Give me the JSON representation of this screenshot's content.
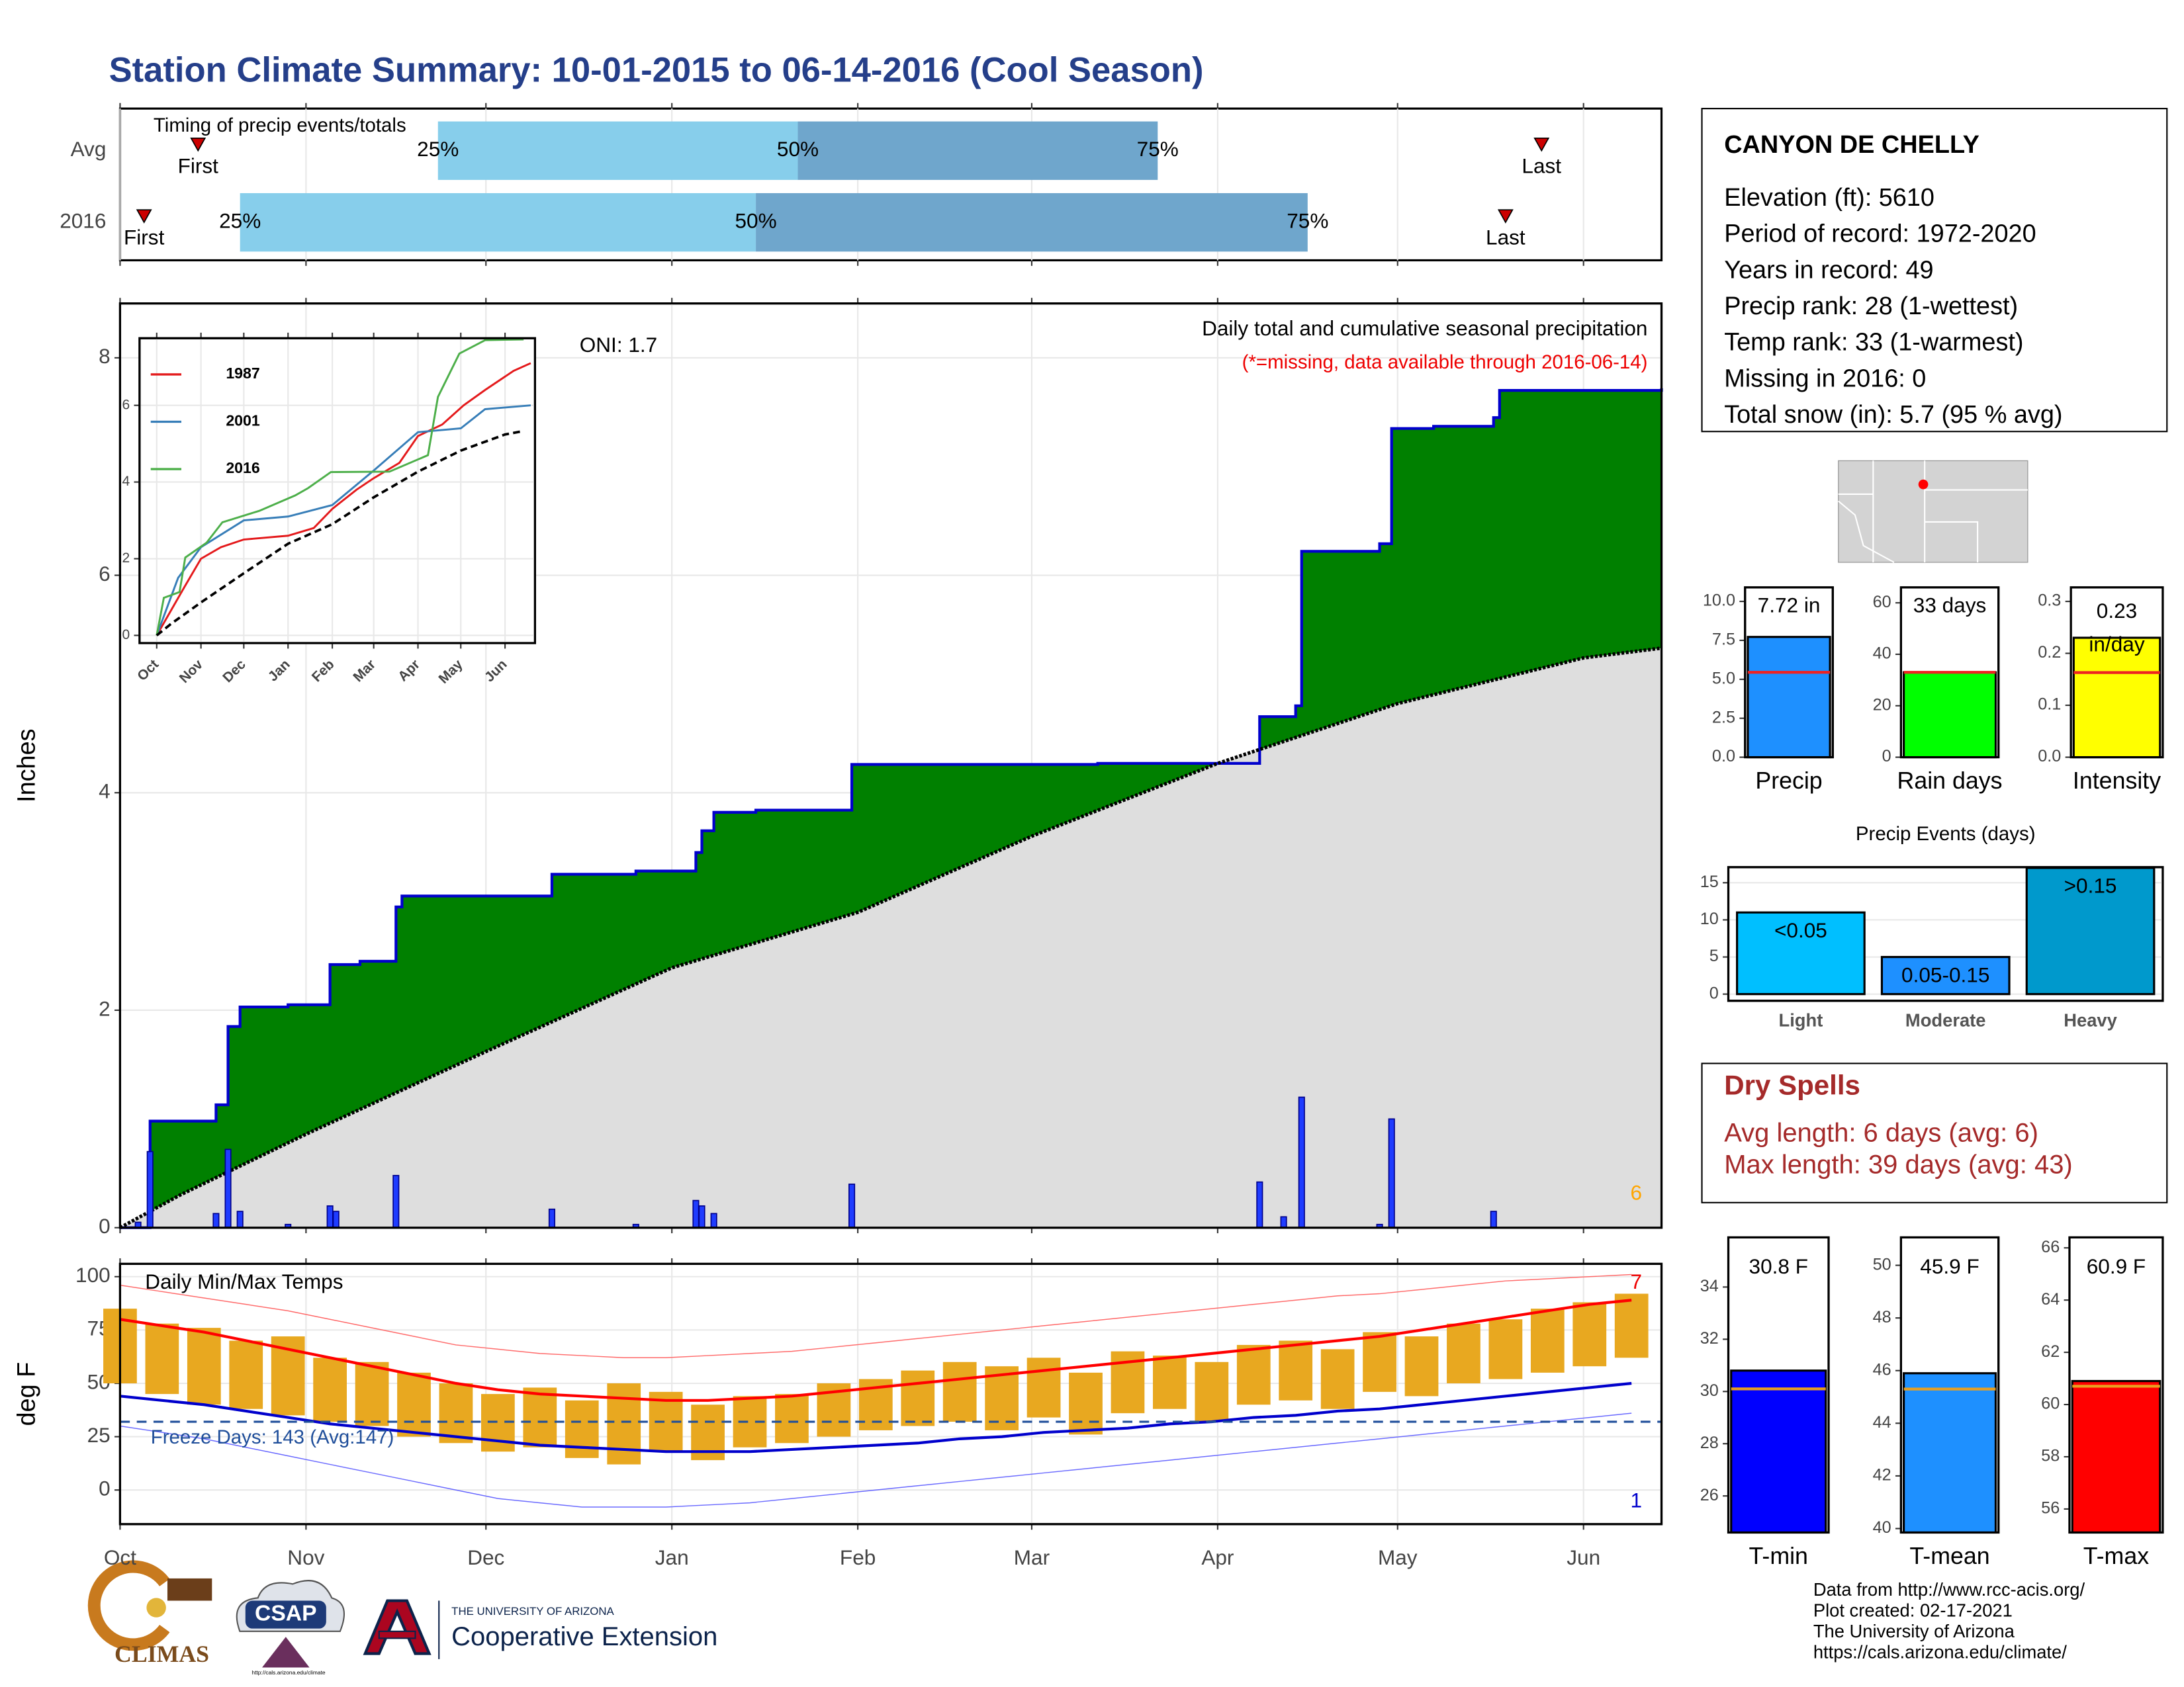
{
  "title": "Station Climate Summary: 10-01-2015 to 06-14-2016 (Cool Season)",
  "station": {
    "name": "CANYON DE CHELLY",
    "lines": [
      "Elevation (ft): 5610",
      "Period of record: 1972-2020",
      "Years in record: 49",
      "Precip rank: 28 (1-wettest)",
      "Temp rank: 33 (1-warmest)",
      "Missing in 2016: 0",
      "Total snow (in): 5.7 (95 % avg)"
    ]
  },
  "dry_spells": {
    "title": "Dry Spells",
    "lines": [
      "Avg length: 6 days (avg: 6)",
      "Max length: 39 days (avg: 43)"
    ]
  },
  "footer": {
    "lines": [
      "Data from http://www.rcc-acis.org/",
      "Plot created: 02-17-2021",
      "The University of Arizona",
      "https://cals.arizona.edu/climate/"
    ]
  },
  "logos": {
    "climas": "CLIMAS",
    "csap": "CSAP",
    "csap_url": "http://cals.arizona.edu/climate",
    "university": "THE UNIVERSITY OF ARIZONA",
    "extension": "Cooperative Extension"
  },
  "chart_data": [
    {
      "type": "timing",
      "subtitle": "Timing of precip events/totals",
      "categories": [
        "Avg",
        "2016"
      ],
      "marker_labels": [
        "First",
        "25%",
        "50%",
        "75%",
        "Last"
      ],
      "values": [
        [
          13,
          53,
          113,
          173,
          237
        ],
        [
          4,
          20,
          106,
          198,
          231
        ]
      ],
      "xlim": [
        0,
        257
      ],
      "xticks": [
        0,
        31,
        61,
        92,
        123,
        152,
        183,
        213,
        244
      ],
      "colors": [
        "#87ceeb",
        "#6fa6cc"
      ],
      "marker_color": "#cc0000"
    },
    {
      "type": "precip",
      "title": "Daily total and cumulative seasonal precipitation",
      "note": "(*=missing, data available through 2016-06-14)",
      "annotation": "ONI: 1.7",
      "count_label": 6,
      "ylabel": "Inches",
      "xlim": [
        0,
        257
      ],
      "ylim": [
        0,
        8.5
      ],
      "xticks": [
        0,
        31,
        61,
        92,
        123,
        152,
        183,
        213,
        244
      ],
      "yticks": [
        0,
        2,
        4,
        6,
        8
      ],
      "grid": true,
      "series": [
        {
          "x": [
            0,
            5,
            16,
            18,
            20,
            28,
            35,
            40,
            46,
            47,
            72,
            86,
            96,
            97,
            99,
            106,
            122,
            163,
            190,
            196,
            197,
            210,
            212,
            219,
            229,
            230,
            257
          ],
          "values": [
            0,
            0.98,
            1.13,
            1.85,
            2.03,
            2.05,
            2.42,
            2.45,
            2.95,
            3.05,
            3.25,
            3.28,
            3.45,
            3.65,
            3.82,
            3.84,
            4.26,
            4.27,
            4.7,
            4.8,
            6.22,
            6.29,
            7.35,
            7.37,
            7.45,
            7.7,
            7.72
          ],
          "color": "#008000",
          "line_color": "#0000cc"
        },
        {
          "x": [
            0,
            10,
            31,
            61,
            92,
            123,
            152,
            183,
            213,
            244,
            257
          ],
          "values": [
            0,
            0.3,
            0.86,
            1.62,
            2.39,
            2.9,
            3.6,
            4.27,
            4.82,
            5.24,
            5.33
          ],
          "color": "#dedede",
          "line_color": "#000000"
        }
      ],
      "daily": {
        "x": [
          3,
          5,
          16,
          18,
          20,
          28,
          35,
          36,
          46,
          72,
          86,
          96,
          97,
          99,
          122,
          190,
          194,
          197,
          210,
          212,
          229
        ],
        "values": [
          0.05,
          0.7,
          0.13,
          0.72,
          0.15,
          0.03,
          0.2,
          0.15,
          0.48,
          0.17,
          0.03,
          0.25,
          0.2,
          0.13,
          0.4,
          0.42,
          0.1,
          1.2,
          0.03,
          1.0,
          0.15
        ],
        "color": "#1f3cff"
      }
    },
    {
      "type": "line",
      "xlim": [
        -12,
        265
      ],
      "ylim": [
        -0.2,
        7.75
      ],
      "xticks": [
        {
          "value": 0,
          "label": "Oct"
        },
        {
          "value": 31,
          "label": "Nov"
        },
        {
          "value": 61,
          "label": "Dec"
        },
        {
          "value": 92,
          "label": "Jan"
        },
        {
          "value": 123,
          "label": "Feb"
        },
        {
          "value": 152,
          "label": "Mar"
        },
        {
          "value": 183,
          "label": "Apr"
        },
        {
          "value": 213,
          "label": "May"
        },
        {
          "value": 244,
          "label": "Jun"
        }
      ],
      "yticks": [
        0,
        2,
        4,
        6
      ],
      "grid": true,
      "series": [
        {
          "name": "1987",
          "color": "#e41a1c",
          "x": [
            0,
            20,
            31,
            45,
            61,
            92,
            110,
            123,
            140,
            152,
            170,
            183,
            200,
            215,
            230,
            250,
            262
          ],
          "values": [
            0,
            1.3,
            2.0,
            2.3,
            2.5,
            2.6,
            2.8,
            3.3,
            3.8,
            4.1,
            4.5,
            5.2,
            5.5,
            6.0,
            6.4,
            6.9,
            7.1
          ]
        },
        {
          "name": "2001",
          "color": "#377eb8",
          "x": [
            0,
            15,
            31,
            61,
            92,
            123,
            152,
            183,
            213,
            230,
            262
          ],
          "values": [
            0,
            1.5,
            2.3,
            3.0,
            3.1,
            3.4,
            4.3,
            5.3,
            5.4,
            5.9,
            6.0
          ]
        },
        {
          "name": "2016",
          "color": "#4daf4a",
          "x": [
            0,
            5,
            16,
            20,
            35,
            46,
            72,
            97,
            106,
            122,
            163,
            190,
            197,
            212,
            230,
            257
          ],
          "values": [
            0,
            0.98,
            1.13,
            2.03,
            2.42,
            2.95,
            3.25,
            3.65,
            3.84,
            4.26,
            4.27,
            4.7,
            6.22,
            7.35,
            7.7,
            7.72
          ]
        },
        {
          "color": "#000000",
          "dashed": true,
          "x": [
            0,
            10,
            31,
            61,
            92,
            123,
            152,
            183,
            213,
            244,
            257
          ],
          "values": [
            0,
            0.3,
            0.86,
            1.62,
            2.39,
            2.9,
            3.6,
            4.27,
            4.82,
            5.24,
            5.33
          ]
        }
      ]
    },
    {
      "type": "temp",
      "title": "Daily Min/Max Temps",
      "annotation": "Freeze Days: 143 (Avg:147)",
      "freeze_line": 32,
      "hot_count": 7,
      "cold_count": 1,
      "ylabel": "deg F",
      "xlim": [
        0,
        257
      ],
      "ylim": [
        -16,
        106
      ],
      "xticks": [
        {
          "value": 0,
          "label": "Oct"
        },
        {
          "value": 31,
          "label": "Nov"
        },
        {
          "value": 61,
          "label": "Dec"
        },
        {
          "value": 92,
          "label": "Jan"
        },
        {
          "value": 123,
          "label": "Feb"
        },
        {
          "value": 152,
          "label": "Mar"
        },
        {
          "value": 183,
          "label": "Apr"
        },
        {
          "value": 213,
          "label": "May"
        },
        {
          "value": 244,
          "label": "Jun"
        }
      ],
      "yticks": [
        0,
        25,
        50,
        75,
        100
      ],
      "grid": true,
      "x": [
        0,
        7,
        14,
        21,
        28,
        35,
        42,
        49,
        56,
        63,
        70,
        77,
        84,
        91,
        98,
        105,
        112,
        119,
        126,
        133,
        140,
        147,
        154,
        161,
        168,
        175,
        182,
        189,
        196,
        203,
        210,
        217,
        224,
        231,
        238,
        245,
        252
      ],
      "range": {
        "color": "#e8a820",
        "min": [
          50,
          45,
          40,
          38,
          35,
          32,
          30,
          25,
          22,
          18,
          20,
          15,
          12,
          18,
          14,
          20,
          22,
          25,
          28,
          30,
          32,
          28,
          34,
          26,
          36,
          38,
          32,
          40,
          42,
          38,
          46,
          44,
          50,
          52,
          55,
          58,
          62
        ],
        "max": [
          85,
          78,
          76,
          70,
          72,
          62,
          60,
          55,
          50,
          45,
          48,
          42,
          50,
          46,
          40,
          44,
          45,
          50,
          52,
          56,
          60,
          58,
          62,
          55,
          65,
          63,
          60,
          68,
          70,
          66,
          74,
          72,
          78,
          80,
          85,
          88,
          92
        ]
      },
      "series": [
        {
          "color": "#ff0000",
          "width": 2,
          "values": [
            80,
            77,
            74,
            70,
            66,
            62,
            58,
            54,
            50,
            47,
            45,
            44,
            43,
            42,
            42,
            43,
            44,
            46,
            48,
            50,
            52,
            54,
            56,
            58,
            60,
            62,
            64,
            66,
            68,
            70,
            72,
            75,
            78,
            81,
            84,
            87,
            89
          ]
        },
        {
          "color": "#0000cc",
          "width": 2,
          "values": [
            44,
            42,
            40,
            37,
            34,
            31,
            29,
            27,
            25,
            23,
            21,
            20,
            19,
            18,
            18,
            18,
            19,
            20,
            21,
            22,
            24,
            25,
            27,
            28,
            29,
            31,
            32,
            34,
            35,
            37,
            38,
            40,
            42,
            44,
            46,
            48,
            50
          ]
        },
        {
          "color": "#ff6a6a",
          "width": 0.7,
          "values": [
            96,
            93,
            90,
            87,
            84,
            80,
            76,
            72,
            68,
            66,
            64,
            63,
            62,
            62,
            63,
            64,
            65,
            67,
            69,
            71,
            73,
            75,
            77,
            79,
            81,
            83,
            85,
            87,
            89,
            91,
            92,
            94,
            96,
            98,
            99,
            100,
            101
          ]
        },
        {
          "color": "#6a6aff",
          "width": 0.7,
          "values": [
            30,
            27,
            24,
            20,
            16,
            12,
            8,
            4,
            0,
            -4,
            -6,
            -8,
            -8,
            -8,
            -7,
            -6,
            -4,
            -2,
            0,
            2,
            4,
            6,
            8,
            10,
            12,
            14,
            16,
            18,
            20,
            22,
            24,
            26,
            28,
            30,
            32,
            34,
            36
          ]
        }
      ],
      "freeze_color": "#1f4e9a"
    },
    {
      "type": "single",
      "categories": [
        "Precip"
      ],
      "values": [
        7.72
      ],
      "value_labels": [
        "7.72 in"
      ],
      "average": 5.45,
      "ylim": [
        0,
        10.9
      ],
      "yticks": [
        {
          "value": 0,
          "label": "0.0"
        },
        {
          "value": 2.5,
          "label": "2.5"
        },
        {
          "value": 5,
          "label": "5.0"
        },
        {
          "value": 7.5,
          "label": "7.5"
        },
        {
          "value": 10,
          "label": "10.0"
        }
      ],
      "color": "#1e90ff",
      "average_color": "#ee2222"
    },
    {
      "type": "single",
      "categories": [
        "Rain days"
      ],
      "values": [
        33
      ],
      "value_labels": [
        "33 days"
      ],
      "average": 33,
      "ylim": [
        0,
        66
      ],
      "yticks": [
        0,
        20,
        40,
        60
      ],
      "color": "#00ff00",
      "average_color": "#ee2222"
    },
    {
      "type": "single",
      "categories": [
        "Intensity"
      ],
      "values": [
        0.23
      ],
      "unit": "in/day",
      "average": 0.163,
      "ylim": [
        0,
        0.327
      ],
      "yticks": [
        {
          "value": 0,
          "label": "0.0"
        },
        {
          "value": 0.1,
          "label": "0.1"
        },
        {
          "value": 0.2,
          "label": "0.2"
        },
        {
          "value": 0.3,
          "label": "0.3"
        }
      ],
      "color": "#ffff00",
      "average_color": "#ee2222"
    },
    {
      "type": "bar",
      "title": "Precip Events (days)",
      "categories": [
        "Light",
        "Moderate",
        "Heavy"
      ],
      "values": [
        11,
        5,
        17
      ],
      "bar_labels": [
        "<0.05",
        "0.05-0.15",
        ">0.15"
      ],
      "colors": [
        "#00bfff",
        "#1e90ff",
        "#0099cc"
      ],
      "ylim": [
        -0.9,
        17.1
      ],
      "yticks": [
        0,
        5,
        10,
        15
      ],
      "grid": true
    },
    {
      "type": "single",
      "categories": [
        "T-min"
      ],
      "values": [
        30.8
      ],
      "value_labels": [
        "30.8 F"
      ],
      "average": 30.1,
      "ylim": [
        24.6,
        35.9
      ],
      "yticks": [
        26,
        28,
        30,
        32,
        34
      ],
      "color": "#0000ff",
      "average_color": "#e8a020"
    },
    {
      "type": "single",
      "categories": [
        "T-mean"
      ],
      "values": [
        45.9
      ],
      "value_labels": [
        "45.9 F"
      ],
      "average": 45.3,
      "ylim": [
        39.85,
        51.06
      ],
      "yticks": [
        40,
        42,
        44,
        46,
        48,
        50
      ],
      "color": "#1e90ff",
      "average_color": "#e8a020"
    },
    {
      "type": "single",
      "categories": [
        "T-max"
      ],
      "values": [
        60.9
      ],
      "value_labels": [
        "60.9 F"
      ],
      "average": 60.7,
      "ylim": [
        55.1,
        66.4
      ],
      "yticks": [
        56,
        58,
        60,
        62,
        64,
        66
      ],
      "color": "#ff0000",
      "average_color": "#e8a020"
    }
  ]
}
